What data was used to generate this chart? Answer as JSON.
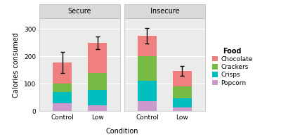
{
  "panels": [
    "Secure",
    "Insecure"
  ],
  "conditions": [
    "Control",
    "Low"
  ],
  "food_items": [
    "Popcorn",
    "Crisps",
    "Crackers",
    "Chocolate"
  ],
  "colors": [
    "#CC99CC",
    "#00BEBE",
    "#77BB44",
    "#F08080"
  ],
  "values": {
    "Secure": {
      "Control": [
        30,
        40,
        30,
        78
      ],
      "Low": [
        22,
        57,
        60,
        111
      ]
    },
    "Insecure": {
      "Control": [
        38,
        72,
        92,
        73
      ],
      "Low": [
        13,
        35,
        42,
        58
      ]
    }
  },
  "error_bars": {
    "Secure": {
      "Control": [
        38,
        38
      ],
      "Low": [
        23,
        23
      ]
    },
    "Insecure": {
      "Control": [
        28,
        28
      ],
      "Low": [
        18,
        18
      ]
    }
  },
  "ylabel": "Calories consumed",
  "xlabel": "Condition",
  "ylim": [
    0,
    340
  ],
  "yticks": [
    0,
    100,
    200,
    300
  ],
  "bg_color": "#FFFFFF",
  "panel_bg": "#EBEBEB",
  "strip_bg": "#D9D9D9",
  "grid_color": "#FFFFFF",
  "legend_title": "Food"
}
